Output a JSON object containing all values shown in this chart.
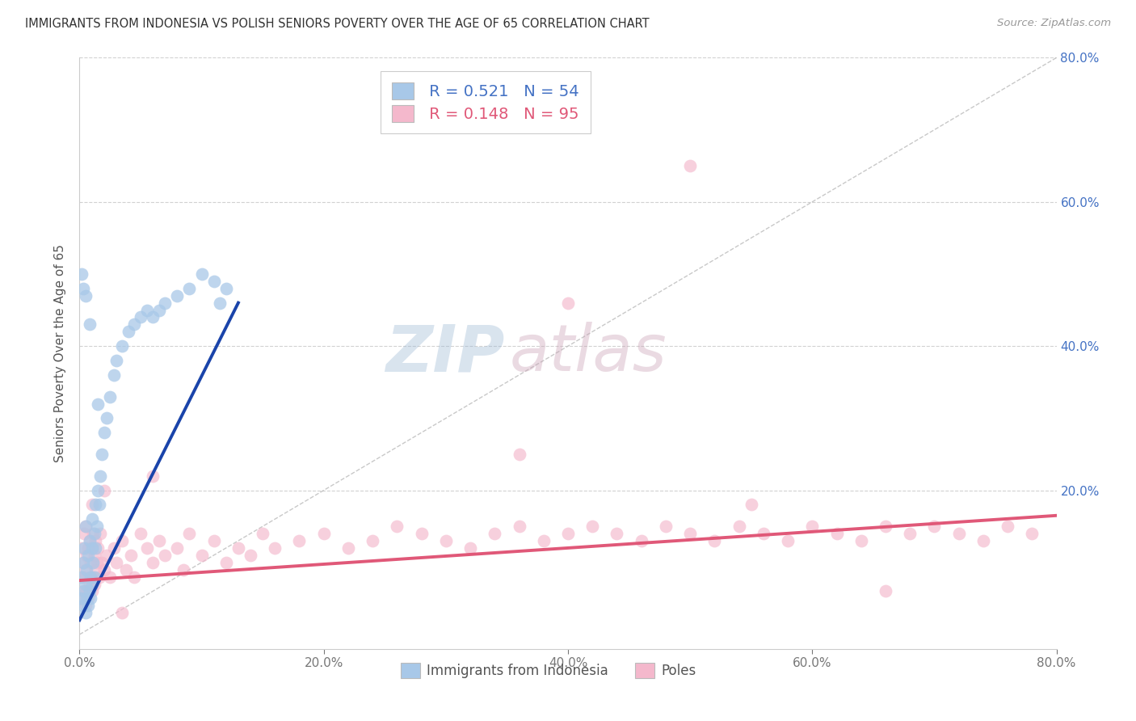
{
  "title": "IMMIGRANTS FROM INDONESIA VS POLISH SENIORS POVERTY OVER THE AGE OF 65 CORRELATION CHART",
  "source": "Source: ZipAtlas.com",
  "ylabel": "Seniors Poverty Over the Age of 65",
  "xlim": [
    0,
    0.8
  ],
  "ylim": [
    -0.02,
    0.8
  ],
  "xtick_labels": [
    "0.0%",
    "20.0%",
    "40.0%",
    "60.0%",
    "80.0%"
  ],
  "xtick_vals": [
    0.0,
    0.2,
    0.4,
    0.6,
    0.8
  ],
  "ytick_labels": [
    "20.0%",
    "40.0%",
    "60.0%",
    "80.0%"
  ],
  "ytick_vals": [
    0.2,
    0.4,
    0.6,
    0.8
  ],
  "R_indonesia": 0.521,
  "N_indonesia": 54,
  "R_poles": 0.148,
  "N_poles": 95,
  "color_indonesia": "#a8c8e8",
  "color_poles": "#f4b8cc",
  "trendline_color_indonesia": "#1a44aa",
  "trendline_color_poles": "#e05878",
  "background_color": "#ffffff",
  "grid_color": "#cccccc",
  "watermark_left": "ZIP",
  "watermark_right": "atlas",
  "indo_trendline_x0": 0.0,
  "indo_trendline_y0": 0.02,
  "indo_trendline_x1": 0.13,
  "indo_trendline_y1": 0.46,
  "poles_trendline_x0": 0.0,
  "poles_trendline_y0": 0.075,
  "poles_trendline_x1": 0.8,
  "poles_trendline_y1": 0.165,
  "indonesia_x": [
    0.001,
    0.002,
    0.003,
    0.003,
    0.004,
    0.004,
    0.005,
    0.005,
    0.005,
    0.006,
    0.006,
    0.007,
    0.007,
    0.008,
    0.008,
    0.009,
    0.009,
    0.01,
    0.01,
    0.01,
    0.011,
    0.012,
    0.012,
    0.013,
    0.013,
    0.014,
    0.015,
    0.016,
    0.017,
    0.018,
    0.02,
    0.022,
    0.025,
    0.028,
    0.03,
    0.035,
    0.04,
    0.045,
    0.05,
    0.055,
    0.06,
    0.065,
    0.07,
    0.08,
    0.09,
    0.1,
    0.11,
    0.115,
    0.12,
    0.005,
    0.003,
    0.002,
    0.008,
    0.015
  ],
  "indonesia_y": [
    0.05,
    0.08,
    0.04,
    0.1,
    0.06,
    0.12,
    0.03,
    0.07,
    0.15,
    0.05,
    0.09,
    0.04,
    0.11,
    0.06,
    0.13,
    0.05,
    0.08,
    0.07,
    0.12,
    0.16,
    0.1,
    0.08,
    0.14,
    0.12,
    0.18,
    0.15,
    0.2,
    0.18,
    0.22,
    0.25,
    0.28,
    0.3,
    0.33,
    0.36,
    0.38,
    0.4,
    0.42,
    0.43,
    0.44,
    0.45,
    0.44,
    0.45,
    0.46,
    0.47,
    0.48,
    0.5,
    0.49,
    0.46,
    0.48,
    0.47,
    0.48,
    0.5,
    0.43,
    0.32
  ],
  "poles_x": [
    0.001,
    0.002,
    0.002,
    0.003,
    0.003,
    0.004,
    0.004,
    0.005,
    0.005,
    0.005,
    0.006,
    0.006,
    0.007,
    0.007,
    0.008,
    0.008,
    0.009,
    0.009,
    0.01,
    0.01,
    0.011,
    0.011,
    0.012,
    0.012,
    0.013,
    0.013,
    0.014,
    0.015,
    0.016,
    0.017,
    0.018,
    0.02,
    0.022,
    0.025,
    0.028,
    0.03,
    0.035,
    0.038,
    0.042,
    0.045,
    0.05,
    0.055,
    0.06,
    0.065,
    0.07,
    0.08,
    0.085,
    0.09,
    0.1,
    0.11,
    0.12,
    0.13,
    0.14,
    0.15,
    0.16,
    0.18,
    0.2,
    0.22,
    0.24,
    0.26,
    0.28,
    0.3,
    0.32,
    0.34,
    0.36,
    0.38,
    0.4,
    0.42,
    0.44,
    0.46,
    0.48,
    0.5,
    0.52,
    0.54,
    0.56,
    0.58,
    0.6,
    0.62,
    0.64,
    0.66,
    0.68,
    0.7,
    0.72,
    0.74,
    0.76,
    0.78,
    0.36,
    0.5,
    0.02,
    0.035,
    0.01,
    0.06,
    0.4,
    0.55,
    0.66
  ],
  "poles_y": [
    0.05,
    0.08,
    0.12,
    0.06,
    0.1,
    0.08,
    0.14,
    0.04,
    0.09,
    0.15,
    0.06,
    0.11,
    0.05,
    0.12,
    0.07,
    0.13,
    0.08,
    0.1,
    0.06,
    0.12,
    0.08,
    0.14,
    0.07,
    0.11,
    0.09,
    0.13,
    0.1,
    0.12,
    0.08,
    0.14,
    0.1,
    0.09,
    0.11,
    0.08,
    0.12,
    0.1,
    0.13,
    0.09,
    0.11,
    0.08,
    0.14,
    0.12,
    0.1,
    0.13,
    0.11,
    0.12,
    0.09,
    0.14,
    0.11,
    0.13,
    0.1,
    0.12,
    0.11,
    0.14,
    0.12,
    0.13,
    0.14,
    0.12,
    0.13,
    0.15,
    0.14,
    0.13,
    0.12,
    0.14,
    0.15,
    0.13,
    0.14,
    0.15,
    0.14,
    0.13,
    0.15,
    0.14,
    0.13,
    0.15,
    0.14,
    0.13,
    0.15,
    0.14,
    0.13,
    0.15,
    0.14,
    0.15,
    0.14,
    0.13,
    0.15,
    0.14,
    0.25,
    0.65,
    0.2,
    0.03,
    0.18,
    0.22,
    0.46,
    0.18,
    0.06
  ]
}
